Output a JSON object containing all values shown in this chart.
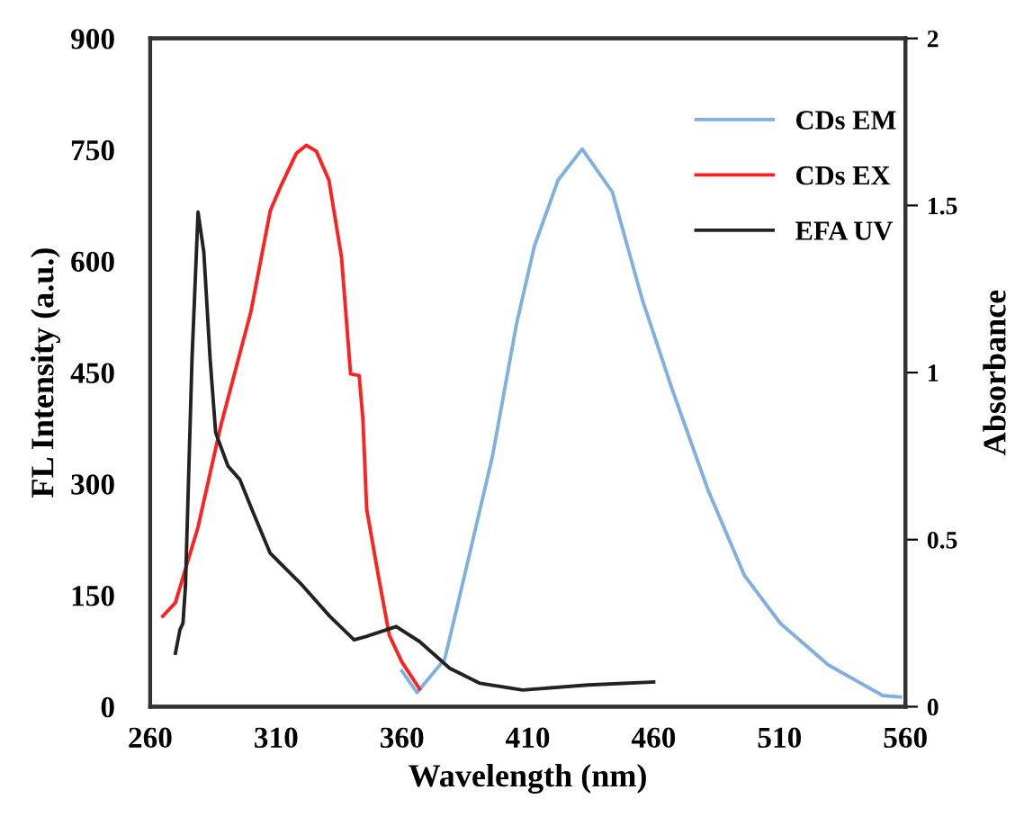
{
  "chart_data": {
    "type": "line",
    "xlabel": "Wavelength (nm)",
    "ylabel": "FL Intensity (a.u.)",
    "y2label": "Absorbance",
    "xlim": [
      260,
      560
    ],
    "xticks": [
      260,
      310,
      360,
      410,
      460,
      510,
      560
    ],
    "ylim": [
      0,
      900
    ],
    "yticks": [
      0,
      150,
      300,
      450,
      600,
      750,
      900
    ],
    "y2lim": [
      0,
      2
    ],
    "y2ticks": [
      0,
      0.5,
      1,
      1.5,
      2
    ],
    "grid": false,
    "legend": "top right",
    "marker": "none",
    "line_style": "solid",
    "series": [
      {
        "name": "CDs EM",
        "color": "#7fb0e0",
        "x": [
          360,
          366,
          377,
          386,
          396,
          405.5,
          412.6,
          422,
          431.6,
          443.6,
          455.5,
          467.4,
          481.8,
          496,
          510.4,
          529.5,
          551,
          558
        ],
        "values": [
          48,
          19,
          64,
          193,
          338,
          515,
          620,
          709,
          751,
          693,
          548,
          427,
          290,
          177,
          112,
          56,
          15,
          13
        ]
      },
      {
        "name": "CDs EX",
        "color": "#ff2020",
        "x": [
          265,
          270,
          279,
          288,
          300,
          307.7,
          312,
          318,
          322,
          326,
          331,
          336,
          339.6,
          343,
          344.5,
          346,
          350.6,
          355,
          360,
          367
        ],
        "values": [
          122,
          140,
          242,
          378,
          532,
          668,
          702,
          745,
          756,
          748,
          709,
          605,
          448,
          446,
          387,
          266,
          177,
          96,
          60,
          24
        ]
      },
      {
        "name": "EFA UV",
        "color": "#222222",
        "axis": "y2",
        "x": [
          270,
          271.8,
          273,
          274,
          276.6,
          279,
          281.3,
          283.8,
          286,
          290.9,
          295.6,
          300.4,
          307.6,
          319.6,
          331.4,
          341,
          345.8,
          357.7,
          367,
          379,
          391,
          408,
          434,
          460
        ],
        "values": [
          0.16,
          0.23,
          0.25,
          0.36,
          1.04,
          1.48,
          1.36,
          1.04,
          0.82,
          0.72,
          0.68,
          0.59,
          0.46,
          0.37,
          0.27,
          0.2,
          0.21,
          0.24,
          0.195,
          0.115,
          0.07,
          0.05,
          0.065,
          0.074
        ]
      }
    ]
  }
}
